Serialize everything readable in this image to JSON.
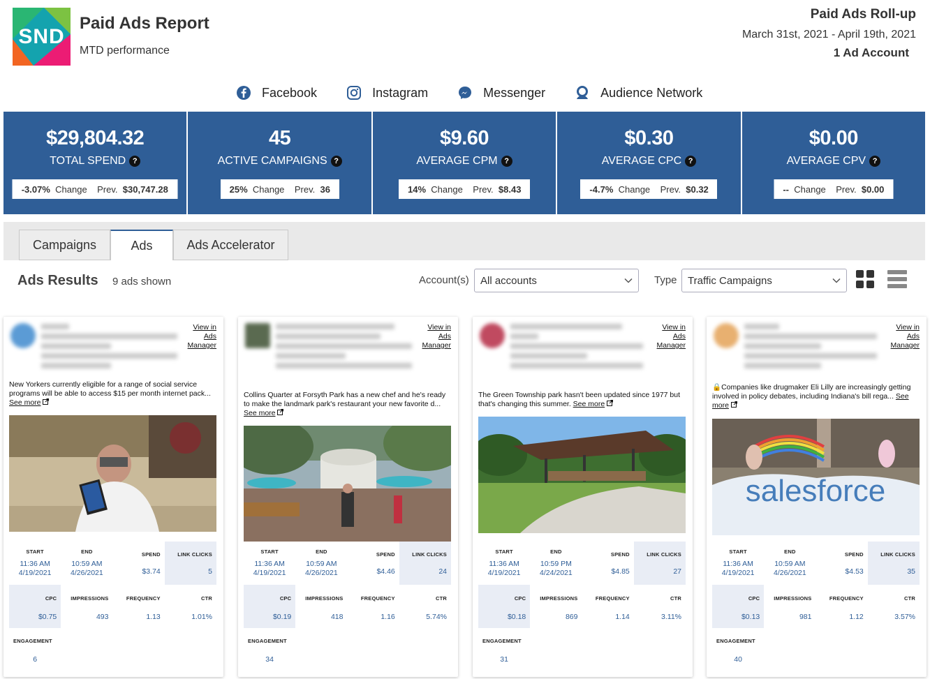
{
  "header": {
    "logo_text": "SND",
    "title": "Paid Ads Report",
    "subtitle": "MTD performance",
    "rollup_title": "Paid Ads Roll-up",
    "date_range": "March 31st, 2021 - April 19th, 2021",
    "account_count": "1 Ad Account"
  },
  "platforms": [
    {
      "label": "Facebook",
      "icon": "facebook-icon"
    },
    {
      "label": "Instagram",
      "icon": "instagram-icon"
    },
    {
      "label": "Messenger",
      "icon": "messenger-icon"
    },
    {
      "label": "Audience Network",
      "icon": "audience-network-icon"
    }
  ],
  "kpis": [
    {
      "value": "$29,804.32",
      "label": "TOTAL SPEND",
      "change": "-3.07%",
      "change_label": "Change",
      "prev_label": "Prev.",
      "prev": "$30,747.28"
    },
    {
      "value": "45",
      "label": "ACTIVE CAMPAIGNS",
      "change": "25%",
      "change_label": "Change",
      "prev_label": "Prev.",
      "prev": "36"
    },
    {
      "value": "$9.60",
      "label": "AVERAGE CPM",
      "change": "14%",
      "change_label": "Change",
      "prev_label": "Prev.",
      "prev": "$8.43"
    },
    {
      "value": "$0.30",
      "label": "AVERAGE CPC",
      "change": "-4.7%",
      "change_label": "Change",
      "prev_label": "Prev.",
      "prev": "$0.32"
    },
    {
      "value": "$0.00",
      "label": "AVERAGE CPV",
      "change": "--",
      "change_label": "Change",
      "prev_label": "Prev.",
      "prev": "$0.00"
    }
  ],
  "help_glyph": "?",
  "tabs": [
    {
      "label": "Campaigns",
      "active": false
    },
    {
      "label": "Ads",
      "active": true
    },
    {
      "label": "Ads Accelerator",
      "active": false
    }
  ],
  "results": {
    "title": "Ads Results",
    "count": "9 ads shown",
    "account_label": "Account(s)",
    "account_value": "All accounts",
    "type_label": "Type",
    "type_value": "Traffic Campaigns"
  },
  "metric_labels": {
    "start": "START",
    "end": "END",
    "spend": "SPEND",
    "link_clicks": "LINK CLICKS",
    "cpc": "CPC",
    "impressions": "IMPRESSIONS",
    "frequency": "FREQUENCY",
    "ctr": "CTR",
    "engagement": "ENGAGEMENT"
  },
  "cards": [
    {
      "view_lines": [
        "View in",
        "Ads",
        "Manager"
      ],
      "text": "New Yorkers currently eligible for a range of social service programs will be able to access $15 per month internet pack...",
      "see_more": "See more",
      "start_time": "11:36 AM",
      "start_date": "4/19/2021",
      "end_time": "10:59 AM",
      "end_date": "4/26/2021",
      "spend": "$3.74",
      "link_clicks": "5",
      "cpc": "$0.75",
      "impressions": "493",
      "frequency": "1.13",
      "ctr": "1.01%",
      "engagement": "6"
    },
    {
      "view_lines": [
        "View in",
        "Ads",
        "Manager"
      ],
      "text": "Collins Quarter at Forsyth Park has a new chef and he's ready to make the landmark park's restaurant your new favorite d...",
      "see_more": "See more",
      "start_time": "11:36 AM",
      "start_date": "4/19/2021",
      "end_time": "10:59 AM",
      "end_date": "4/26/2021",
      "spend": "$4.46",
      "link_clicks": "24",
      "cpc": "$0.19",
      "impressions": "418",
      "frequency": "1.16",
      "ctr": "5.74%",
      "engagement": "34"
    },
    {
      "view_lines": [
        "View in",
        "Ads",
        "Manager"
      ],
      "text": "The Green Township park hasn't been updated since 1977 but that's changing this summer.",
      "see_more": "See more",
      "start_time": "11:36 AM",
      "start_date": "4/19/2021",
      "end_time": "10:59 PM",
      "end_date": "4/24/2021",
      "spend": "$4.85",
      "link_clicks": "27",
      "cpc": "$0.18",
      "impressions": "869",
      "frequency": "1.14",
      "ctr": "3.11%",
      "engagement": "31"
    },
    {
      "view_lines": [
        "View in",
        "Ads",
        "Manager"
      ],
      "text": "🔒Companies like drugmaker Eli Lilly are increasingly getting involved in policy debates, including Indiana's bill rega...",
      "see_more": "See more",
      "image_overlay_text": "salesforce",
      "start_time": "11:36 AM",
      "start_date": "4/19/2021",
      "end_time": "10:59 AM",
      "end_date": "4/26/2021",
      "spend": "$4.53",
      "link_clicks": "35",
      "cpc": "$0.13",
      "impressions": "981",
      "frequency": "1.12",
      "ctr": "3.57%",
      "engagement": "40"
    }
  ],
  "colors": {
    "kpi_bg": "#2f5e97",
    "metric_value": "#2f5e97",
    "facebook": "#1877f2"
  }
}
